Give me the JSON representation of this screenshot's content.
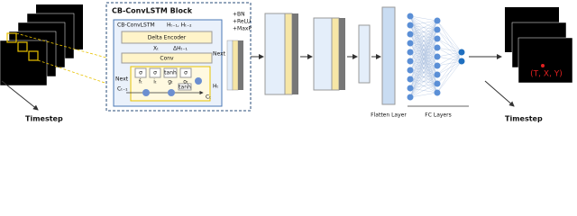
{
  "left": {
    "label": "Timestep"
  },
  "block": {
    "title": "CB-ConvLSTM Block",
    "cell_title": "CB-ConvLSTM",
    "history": "Hₜ₋₁, Hₜ₋₂",
    "delta_encoder": "Delta Encoder",
    "input": "Xₜ",
    "delta": "ΔHₜ₋₁",
    "conv": "Conv",
    "gates": [
      {
        "fn": "σ",
        "name": "fₜ"
      },
      {
        "fn": "σ",
        "name": "iₜ"
      },
      {
        "fn": "tanh",
        "name": "gₜ"
      },
      {
        "fn": "σ",
        "name": "oₜ"
      }
    ],
    "cell_prev": "Cₜ₋₁",
    "cell_next": "Cₜ",
    "cell_tanh": "tanh",
    "hidden": "Hₜ",
    "next_left": "Next",
    "next_right": "Next t"
  },
  "post_ops": [
    "+BN",
    "+ReLU",
    "+MaxP"
  ],
  "flatten": "Flatten Layer",
  "fc": "FC Layers",
  "right": {
    "label": "Timestep",
    "coords": "(T, X, Y)"
  }
}
